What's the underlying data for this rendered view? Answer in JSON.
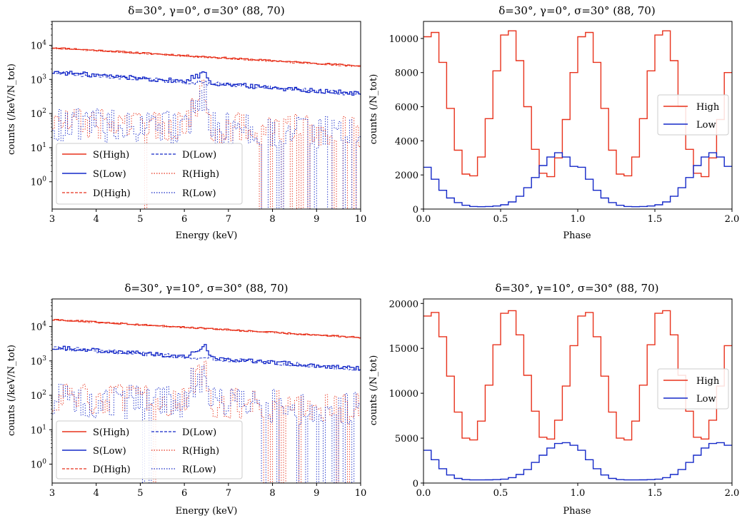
{
  "figure_title": "X-ray spectra and phase light curves",
  "colors": {
    "high": "#e8321c",
    "low": "#1428c8",
    "axis": "#000000"
  },
  "chart_data": [
    {
      "type": "line",
      "panel": "spectrum-top",
      "title": "δ=30°, γ=0°, σ=30° (88, 70)",
      "xlabel": "Energy (keV)",
      "ylabel": "counts (/keV/N_tot)",
      "xlim": [
        3,
        10
      ],
      "ylim_log10": [
        -0.8,
        4.7
      ],
      "yscale": "log",
      "xticks": [
        "3",
        "4",
        "5",
        "6",
        "7",
        "8",
        "9",
        "10"
      ],
      "yticks": [
        {
          "base": "10",
          "exp": "0",
          "log": 0
        },
        {
          "base": "10",
          "exp": "1",
          "log": 1
        },
        {
          "base": "10",
          "exp": "2",
          "log": 2
        },
        {
          "base": "10",
          "exp": "3",
          "log": 3
        },
        {
          "base": "10",
          "exp": "4",
          "log": 4
        }
      ],
      "legend_position": "lower-left",
      "legend": [
        "S(High)",
        "D(Low)",
        "S(Low)",
        "R(High)",
        "D(High)",
        "R(Low)"
      ],
      "series": [
        {
          "name": "S(High)",
          "style": "solid",
          "color": "high",
          "start": 8500,
          "end": 2500,
          "noise": 0.02
        },
        {
          "name": "S(Low)",
          "style": "solid",
          "color": "low",
          "start": 1650,
          "end": 380,
          "noise": 0.07,
          "line_peak": 1200
        },
        {
          "name": "D(High)",
          "style": "dashed",
          "color": "high",
          "start": 8300,
          "end": 2400,
          "noise": 0.02
        },
        {
          "name": "D(Low)",
          "style": "dashed",
          "color": "low",
          "start": 1600,
          "end": 370,
          "noise": 0.06
        },
        {
          "name": "R(High)",
          "style": "dotted",
          "color": "high",
          "start": 55,
          "end": 30,
          "noise": 0.45,
          "line_peak": 450
        },
        {
          "name": "R(Low)",
          "style": "dotted",
          "color": "low",
          "start": 50,
          "end": 25,
          "noise": 0.5,
          "line_peak": 320
        }
      ]
    },
    {
      "type": "line",
      "panel": "lightcurve-top",
      "title": "δ=30°, γ=0°, σ=30° (88, 70)",
      "xlabel": "Phase",
      "ylabel": "counts (/N_tot)",
      "xlim": [
        0,
        2
      ],
      "ylim": [
        0,
        11000
      ],
      "xticks": [
        "0.0",
        "0.5",
        "1.0",
        "1.5",
        "2.0"
      ],
      "yticks": [
        "0",
        "2000",
        "4000",
        "6000",
        "8000",
        "10000"
      ],
      "legend_position": "center-right",
      "legend": [
        "High",
        "Low"
      ],
      "bins_per_cycle": 20,
      "series": [
        {
          "name": "High",
          "color": "high",
          "values": [
            10100,
            10350,
            8600,
            5900,
            3450,
            2050,
            1950,
            3050,
            5300,
            8100,
            10200,
            10450,
            8700,
            6000,
            3500,
            2100,
            1900,
            3000,
            5250,
            8000
          ]
        },
        {
          "name": "Low",
          "color": "low",
          "values": [
            2450,
            1750,
            1100,
            650,
            380,
            220,
            150,
            140,
            150,
            180,
            250,
            420,
            750,
            1250,
            1850,
            2550,
            3050,
            3300,
            3050,
            2500
          ]
        }
      ]
    },
    {
      "type": "line",
      "panel": "spectrum-bottom",
      "title": "δ=30°, γ=10°, σ=30° (88, 70)",
      "xlabel": "Energy (keV)",
      "ylabel": "counts (/keV/N_tot)",
      "xlim": [
        3,
        10
      ],
      "ylim_log10": [
        -0.55,
        4.8
      ],
      "yscale": "log",
      "xticks": [
        "3",
        "4",
        "5",
        "6",
        "7",
        "8",
        "9",
        "10"
      ],
      "yticks": [
        {
          "base": "10",
          "exp": "0",
          "log": 0
        },
        {
          "base": "10",
          "exp": "1",
          "log": 1
        },
        {
          "base": "10",
          "exp": "2",
          "log": 2
        },
        {
          "base": "10",
          "exp": "3",
          "log": 3
        },
        {
          "base": "10",
          "exp": "4",
          "log": 4
        }
      ],
      "legend_position": "lower-left",
      "legend": [
        "S(High)",
        "D(Low)",
        "S(Low)",
        "R(High)",
        "D(High)",
        "R(Low)"
      ],
      "series": [
        {
          "name": "S(High)",
          "style": "solid",
          "color": "high",
          "start": 16000,
          "end": 4800,
          "noise": 0.02
        },
        {
          "name": "S(Low)",
          "style": "solid",
          "color": "low",
          "start": 2500,
          "end": 600,
          "noise": 0.06,
          "line_peak": 1900
        },
        {
          "name": "D(High)",
          "style": "dashed",
          "color": "high",
          "start": 15700,
          "end": 4700,
          "noise": 0.02
        },
        {
          "name": "D(Low)",
          "style": "dashed",
          "color": "low",
          "start": 2450,
          "end": 590,
          "noise": 0.06
        },
        {
          "name": "R(High)",
          "style": "dotted",
          "color": "high",
          "start": 85,
          "end": 45,
          "noise": 0.45,
          "line_peak": 800
        },
        {
          "name": "R(Low)",
          "style": "dotted",
          "color": "low",
          "start": 75,
          "end": 40,
          "noise": 0.5,
          "line_peak": 600
        }
      ]
    },
    {
      "type": "line",
      "panel": "lightcurve-bottom",
      "title": "δ=30°, γ=10°, σ=30° (88, 70)",
      "xlabel": "Phase",
      "ylabel": "counts (/N_tot)",
      "xlim": [
        0,
        2
      ],
      "ylim": [
        0,
        20500
      ],
      "xticks": [
        "0.0",
        "0.5",
        "1.0",
        "1.5",
        "2.0"
      ],
      "yticks": [
        "0",
        "5000",
        "10000",
        "15000",
        "20000"
      ],
      "legend_position": "center-right",
      "legend": [
        "High",
        "Low"
      ],
      "bins_per_cycle": 20,
      "series": [
        {
          "name": "High",
          "color": "high",
          "values": [
            18600,
            19000,
            16300,
            11900,
            7900,
            5000,
            4800,
            6900,
            10900,
            15400,
            18900,
            19200,
            16500,
            12000,
            8000,
            5100,
            4900,
            7000,
            10800,
            15300
          ]
        },
        {
          "name": "Low",
          "color": "low",
          "values": [
            3650,
            2600,
            1600,
            900,
            520,
            380,
            350,
            350,
            360,
            380,
            430,
            600,
            950,
            1500,
            2300,
            3100,
            3900,
            4400,
            4500,
            4200
          ]
        }
      ]
    }
  ]
}
